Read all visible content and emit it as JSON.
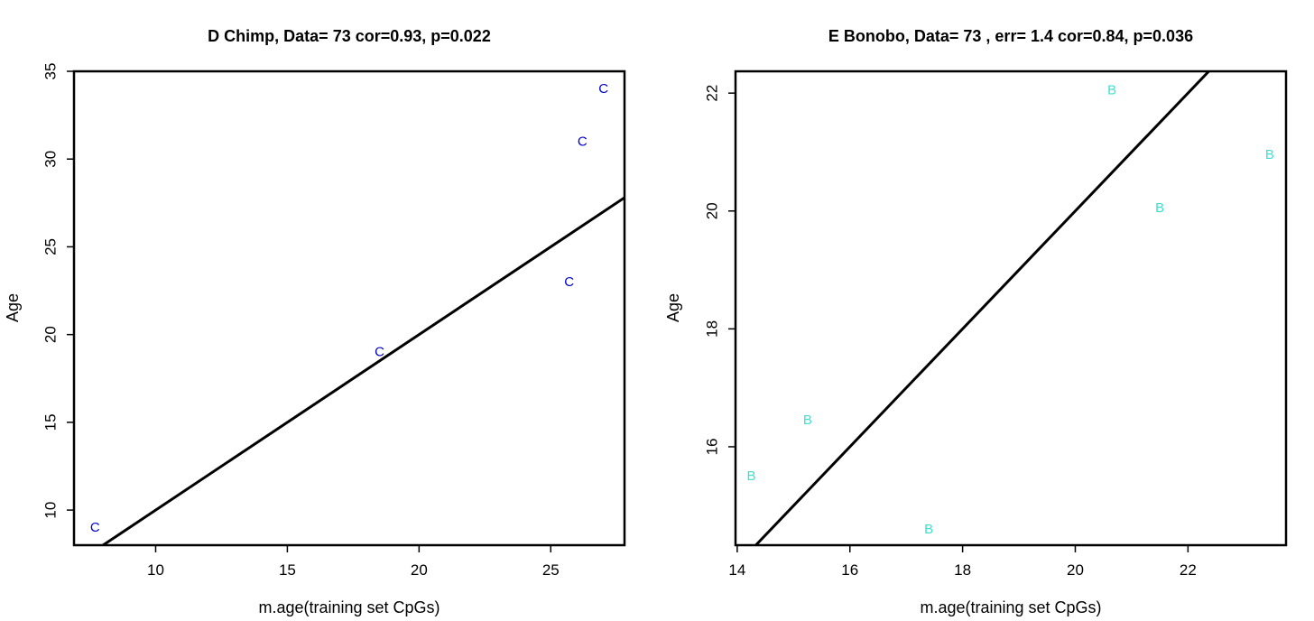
{
  "chart_data": [
    {
      "type": "scatter",
      "title": "D Chimp, Data= 73 cor=0.93, p=0.022",
      "xlabel": "m.age(training set CpGs)",
      "ylabel": "Age",
      "xlim": [
        6.9,
        27.8
      ],
      "ylim": [
        8.0,
        35.0
      ],
      "xticks": [
        10,
        15,
        20,
        25
      ],
      "yticks": [
        10,
        15,
        20,
        25,
        30,
        35
      ],
      "grid": false,
      "legend": "none",
      "marker_label": "C",
      "marker_color": "#0000CD",
      "points": [
        {
          "x": 7.7,
          "y": 9.0
        },
        {
          "x": 18.5,
          "y": 19.0
        },
        {
          "x": 25.7,
          "y": 23.0
        },
        {
          "x": 26.2,
          "y": 31.0
        },
        {
          "x": 27.0,
          "y": 34.0
        }
      ],
      "fit_line": {
        "x": [
          8.0,
          27.8
        ],
        "y": [
          8.0,
          27.8
        ],
        "color": "#000000"
      }
    },
    {
      "type": "scatter",
      "title": "E Bonobo, Data= 73 , err= 1.4 cor=0.84, p=0.036",
      "xlabel": "m.age(training set CpGs)",
      "ylabel": "Age",
      "xlim": [
        13.97,
        23.74
      ],
      "ylim": [
        14.33,
        22.37
      ],
      "xticks": [
        14,
        16,
        18,
        20,
        22
      ],
      "yticks": [
        16,
        18,
        20,
        22
      ],
      "grid": false,
      "legend": "none",
      "marker_label": "B",
      "marker_color": "#40E0D0",
      "points": [
        {
          "x": 14.25,
          "y": 15.5
        },
        {
          "x": 15.25,
          "y": 16.45
        },
        {
          "x": 17.4,
          "y": 14.6
        },
        {
          "x": 20.65,
          "y": 22.05
        },
        {
          "x": 21.5,
          "y": 20.05
        },
        {
          "x": 23.45,
          "y": 20.95
        }
      ],
      "fit_line": {
        "x": [
          14.33,
          22.37
        ],
        "y": [
          14.33,
          22.37
        ],
        "color": "#000000"
      }
    }
  ]
}
